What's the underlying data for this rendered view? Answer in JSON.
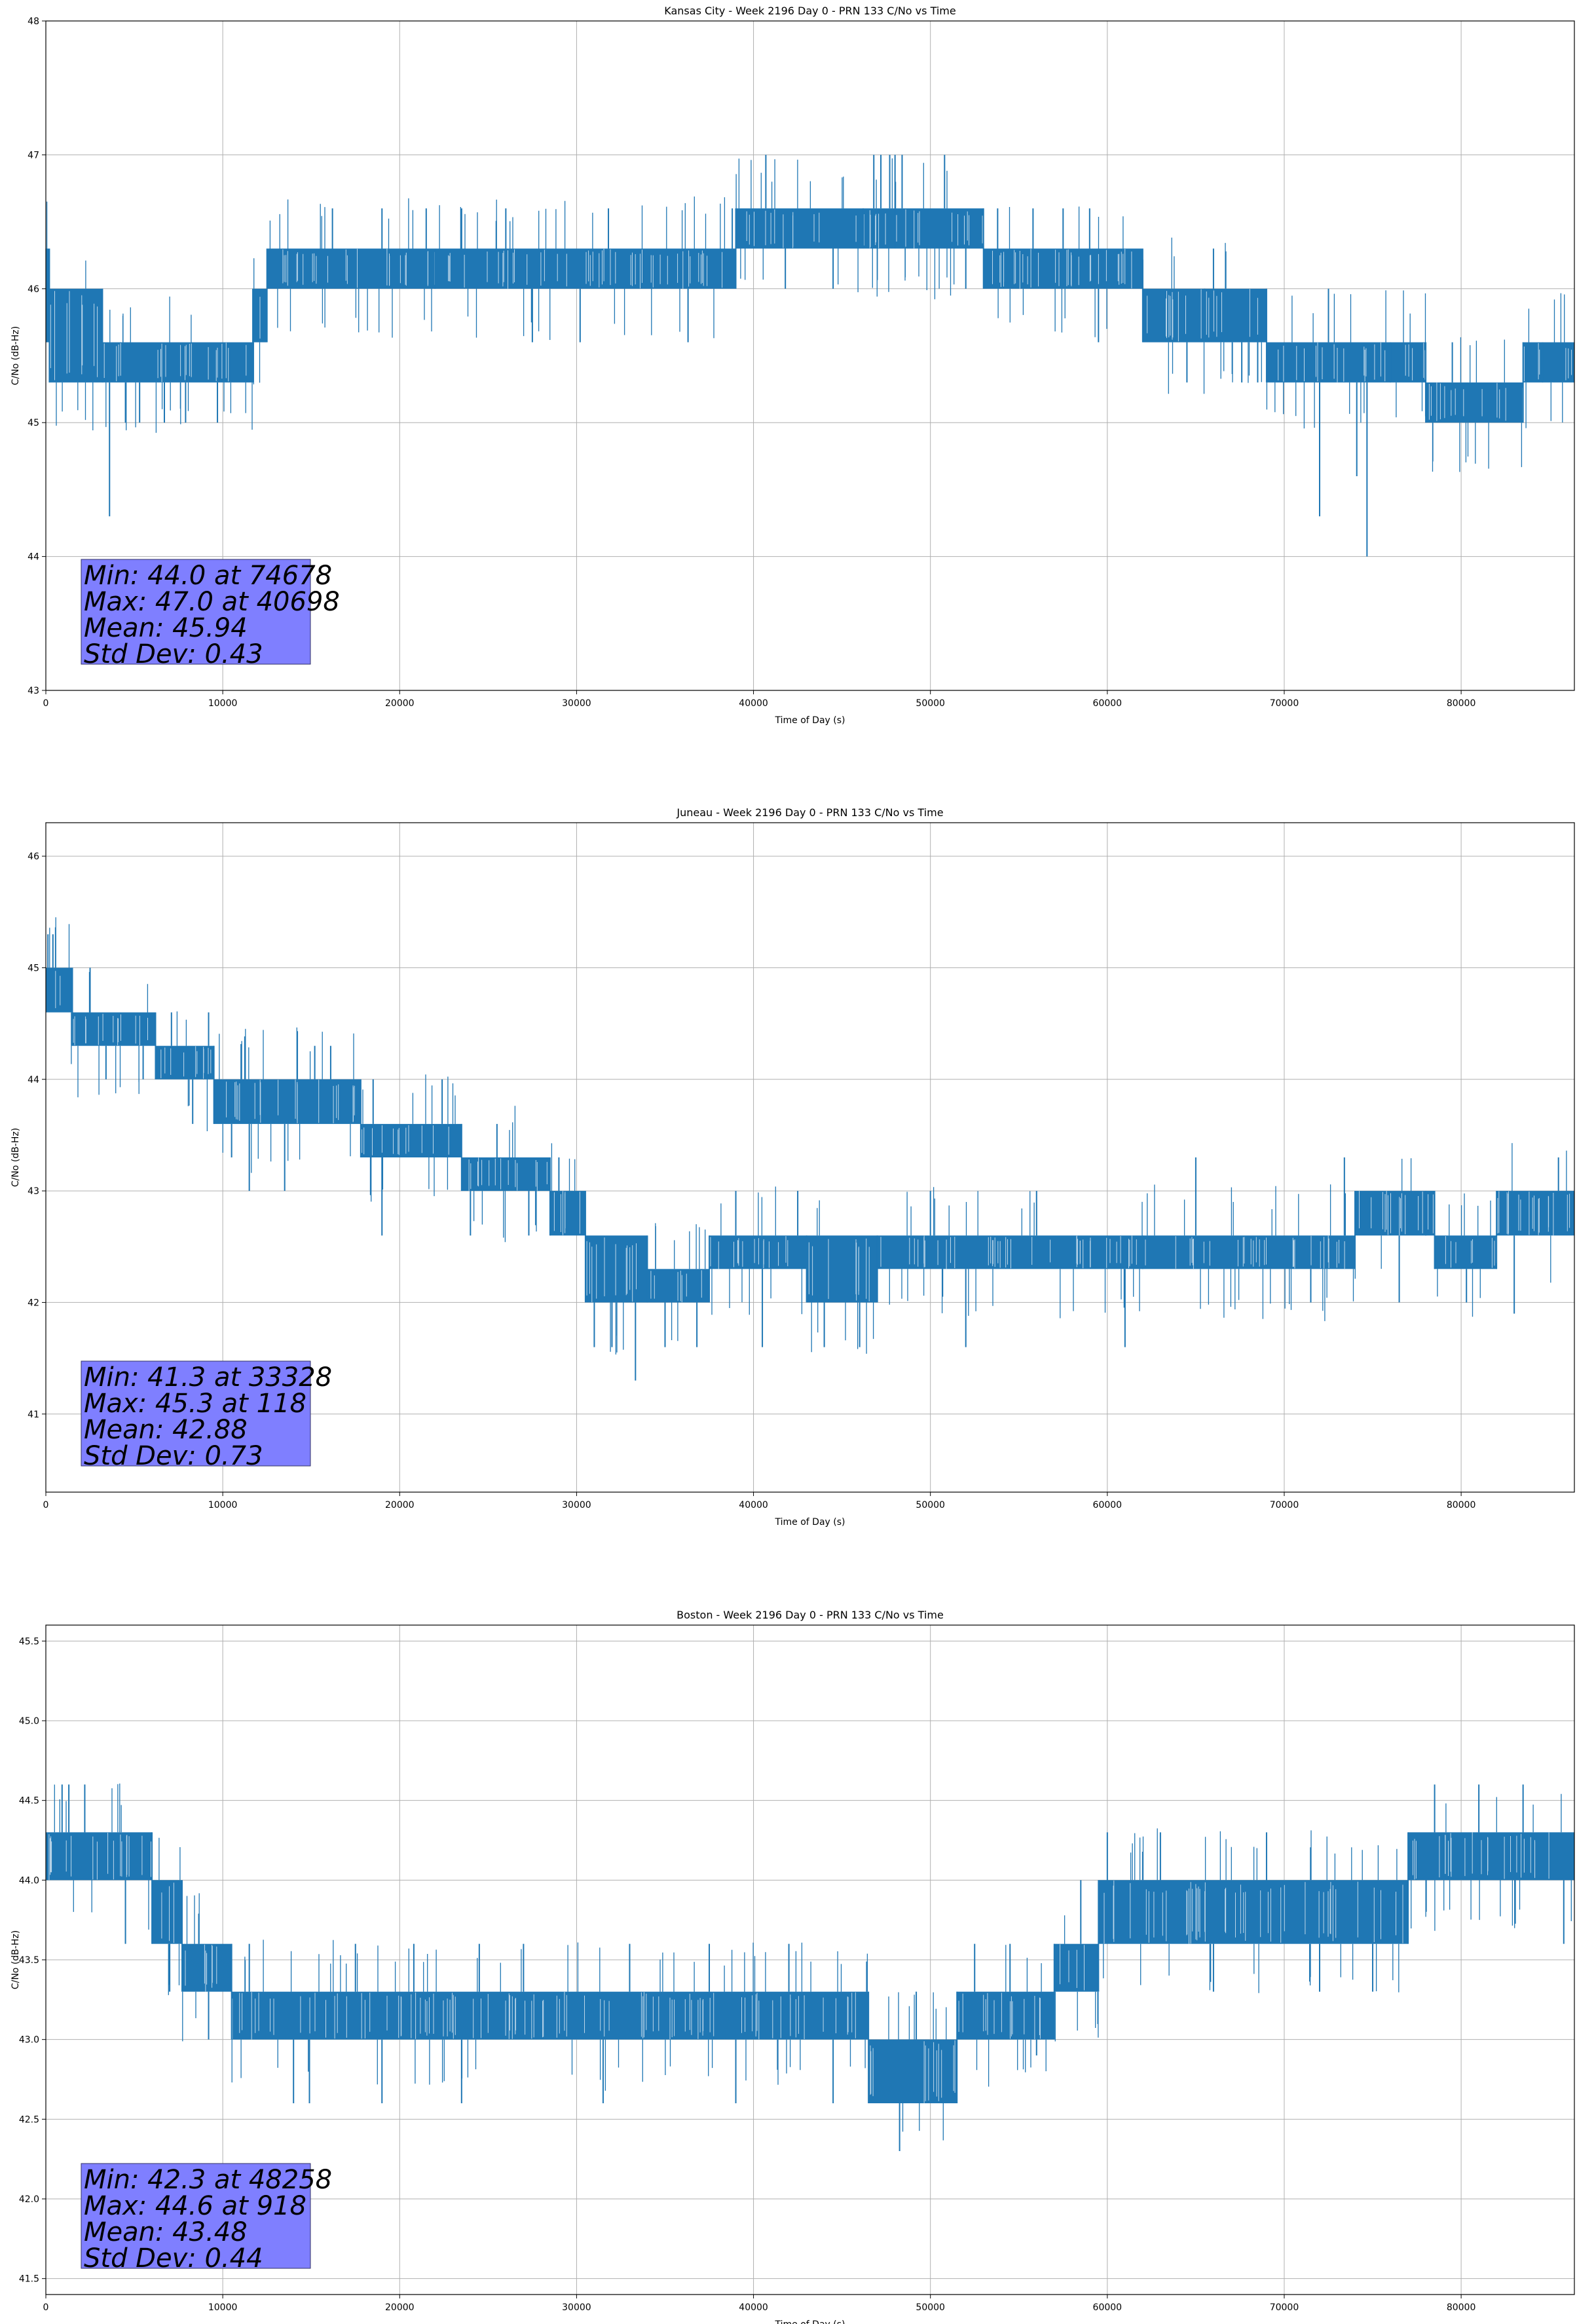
{
  "chart_data": [
    {
      "type": "line",
      "title": "Kansas City - Week 2196 Day 0 - PRN 133 C/No vs Time",
      "xlabel": "Time of Day (s)",
      "ylabel": "C/No (dB-Hz)",
      "xlim": [
        0,
        86400
      ],
      "ylim": [
        43,
        48
      ],
      "xticks": [
        0,
        10000,
        20000,
        30000,
        40000,
        50000,
        60000,
        70000,
        80000
      ],
      "xtick_labels": [
        "0",
        "10000",
        "20000",
        "30000",
        "40000",
        "50000",
        "60000",
        "70000",
        "80000"
      ],
      "yticks": [
        43,
        44,
        45,
        46,
        47,
        48
      ],
      "ytick_labels": [
        "43",
        "44",
        "45",
        "46",
        "47",
        "48"
      ],
      "grid": true,
      "series_color": "#1f77b4",
      "stats_box_color": "#7f7fff",
      "stats": [
        "Min: 44.0 at 74678",
        "Max: 47.0 at 40698",
        "Mean: 45.94",
        "Std Dev: 0.43"
      ],
      "segments": [
        {
          "x0": 0,
          "x1": 200,
          "lo": 45.6,
          "hi": 46.3
        },
        {
          "x0": 200,
          "x1": 3200,
          "lo": 45.3,
          "hi": 46.0
        },
        {
          "x0": 3200,
          "x1": 11700,
          "lo": 45.3,
          "hi": 45.6
        },
        {
          "x0": 11700,
          "x1": 12500,
          "lo": 45.6,
          "hi": 46.0
        },
        {
          "x0": 12500,
          "x1": 22000,
          "lo": 46.0,
          "hi": 46.3
        },
        {
          "x0": 22000,
          "x1": 39000,
          "lo": 46.0,
          "hi": 46.3
        },
        {
          "x0": 39000,
          "x1": 48000,
          "lo": 46.3,
          "hi": 46.6
        },
        {
          "x0": 48000,
          "x1": 53000,
          "lo": 46.3,
          "hi": 46.6
        },
        {
          "x0": 53000,
          "x1": 62000,
          "lo": 46.0,
          "hi": 46.3
        },
        {
          "x0": 62000,
          "x1": 65500,
          "lo": 45.6,
          "hi": 46.0
        },
        {
          "x0": 65500,
          "x1": 69000,
          "lo": 45.6,
          "hi": 46.0
        },
        {
          "x0": 69000,
          "x1": 78000,
          "lo": 45.3,
          "hi": 45.6
        },
        {
          "x0": 78000,
          "x1": 83500,
          "lo": 45.0,
          "hi": 45.3
        },
        {
          "x0": 83500,
          "x1": 86400,
          "lo": 45.3,
          "hi": 45.6
        }
      ],
      "spikes": [
        {
          "x": 3600,
          "y": 44.3
        },
        {
          "x": 4500,
          "y": 45.0
        },
        {
          "x": 5300,
          "y": 45.0
        },
        {
          "x": 6700,
          "y": 45.0
        },
        {
          "x": 7900,
          "y": 45.0
        },
        {
          "x": 9700,
          "y": 45.0
        },
        {
          "x": 16200,
          "y": 46.6
        },
        {
          "x": 19000,
          "y": 46.6
        },
        {
          "x": 21500,
          "y": 46.6
        },
        {
          "x": 23500,
          "y": 46.6
        },
        {
          "x": 26000,
          "y": 46.6
        },
        {
          "x": 27500,
          "y": 45.6
        },
        {
          "x": 30200,
          "y": 45.6
        },
        {
          "x": 31800,
          "y": 46.6
        },
        {
          "x": 36300,
          "y": 45.6
        },
        {
          "x": 38800,
          "y": 46.6
        },
        {
          "x": 40698,
          "y": 47.0
        },
        {
          "x": 41800,
          "y": 46.0
        },
        {
          "x": 44500,
          "y": 46.0
        },
        {
          "x": 46200,
          "y": 46.6
        },
        {
          "x": 46800,
          "y": 47.0
        },
        {
          "x": 47200,
          "y": 47.0
        },
        {
          "x": 47700,
          "y": 47.0
        },
        {
          "x": 48000,
          "y": 47.0
        },
        {
          "x": 48400,
          "y": 47.0
        },
        {
          "x": 50800,
          "y": 47.0
        },
        {
          "x": 52000,
          "y": 46.0
        },
        {
          "x": 53800,
          "y": 46.6
        },
        {
          "x": 55800,
          "y": 46.6
        },
        {
          "x": 57500,
          "y": 46.6
        },
        {
          "x": 59000,
          "y": 46.6
        },
        {
          "x": 59500,
          "y": 45.6
        },
        {
          "x": 64500,
          "y": 45.3
        },
        {
          "x": 66000,
          "y": 46.3
        },
        {
          "x": 67600,
          "y": 45.3
        },
        {
          "x": 68500,
          "y": 45.3
        },
        {
          "x": 72000,
          "y": 44.3
        },
        {
          "x": 72500,
          "y": 46.0
        },
        {
          "x": 74100,
          "y": 44.6
        },
        {
          "x": 74678,
          "y": 44.0
        },
        {
          "x": 76000,
          "y": 45.6
        },
        {
          "x": 79500,
          "y": 45.6
        },
        {
          "x": 82000,
          "y": 45.0
        },
        {
          "x": 84600,
          "y": 45.6
        }
      ]
    },
    {
      "type": "line",
      "title": "Juneau - Week 2196 Day 0 - PRN 133 C/No vs Time",
      "xlabel": "Time of Day (s)",
      "ylabel": "C/No (dB-Hz)",
      "xlim": [
        0,
        86400
      ],
      "ylim": [
        40.3,
        46.3
      ],
      "xticks": [
        0,
        10000,
        20000,
        30000,
        40000,
        50000,
        60000,
        70000,
        80000
      ],
      "xtick_labels": [
        "0",
        "10000",
        "20000",
        "30000",
        "40000",
        "50000",
        "60000",
        "70000",
        "80000"
      ],
      "yticks": [
        41,
        42,
        43,
        44,
        45,
        46
      ],
      "ytick_labels": [
        "41",
        "42",
        "43",
        "44",
        "45",
        "46"
      ],
      "grid": true,
      "series_color": "#1f77b4",
      "stats_box_color": "#7f7fff",
      "stats": [
        "Min: 41.3 at 33328",
        "Max: 45.3 at 118",
        "Mean: 42.88",
        "Std Dev: 0.73"
      ],
      "segments": [
        {
          "x0": 0,
          "x1": 1500,
          "lo": 44.6,
          "hi": 45.0
        },
        {
          "x0": 1500,
          "x1": 6200,
          "lo": 44.3,
          "hi": 44.6
        },
        {
          "x0": 6200,
          "x1": 9500,
          "lo": 44.0,
          "hi": 44.3
        },
        {
          "x0": 9500,
          "x1": 17800,
          "lo": 43.6,
          "hi": 44.0
        },
        {
          "x0": 17800,
          "x1": 23500,
          "lo": 43.3,
          "hi": 43.6
        },
        {
          "x0": 23500,
          "x1": 28500,
          "lo": 43.0,
          "hi": 43.3
        },
        {
          "x0": 28500,
          "x1": 30500,
          "lo": 42.6,
          "hi": 43.0
        },
        {
          "x0": 30500,
          "x1": 34000,
          "lo": 42.0,
          "hi": 42.6
        },
        {
          "x0": 34000,
          "x1": 37500,
          "lo": 42.0,
          "hi": 42.3
        },
        {
          "x0": 37500,
          "x1": 43000,
          "lo": 42.3,
          "hi": 42.6
        },
        {
          "x0": 43000,
          "x1": 47000,
          "lo": 42.0,
          "hi": 42.6
        },
        {
          "x0": 47000,
          "x1": 62000,
          "lo": 42.3,
          "hi": 42.6
        },
        {
          "x0": 62000,
          "x1": 74000,
          "lo": 42.3,
          "hi": 42.6
        },
        {
          "x0": 74000,
          "x1": 78500,
          "lo": 42.6,
          "hi": 43.0
        },
        {
          "x0": 78500,
          "x1": 82000,
          "lo": 42.3,
          "hi": 42.6
        },
        {
          "x0": 82000,
          "x1": 86400,
          "lo": 42.6,
          "hi": 43.0
        }
      ],
      "spikes": [
        {
          "x": 118,
          "y": 45.3
        },
        {
          "x": 400,
          "y": 45.3
        },
        {
          "x": 2500,
          "y": 45.0
        },
        {
          "x": 3400,
          "y": 44.0
        },
        {
          "x": 5500,
          "y": 44.0
        },
        {
          "x": 7100,
          "y": 44.6
        },
        {
          "x": 8300,
          "y": 43.6
        },
        {
          "x": 9200,
          "y": 44.6
        },
        {
          "x": 10500,
          "y": 43.3
        },
        {
          "x": 11500,
          "y": 43.0
        },
        {
          "x": 13500,
          "y": 43.0
        },
        {
          "x": 15200,
          "y": 44.3
        },
        {
          "x": 16100,
          "y": 44.3
        },
        {
          "x": 18500,
          "y": 44.0
        },
        {
          "x": 19000,
          "y": 42.6
        },
        {
          "x": 22400,
          "y": 44.0
        },
        {
          "x": 24000,
          "y": 42.6
        },
        {
          "x": 25500,
          "y": 43.6
        },
        {
          "x": 27300,
          "y": 42.6
        },
        {
          "x": 29000,
          "y": 43.3
        },
        {
          "x": 31000,
          "y": 41.6
        },
        {
          "x": 32000,
          "y": 41.6
        },
        {
          "x": 33328,
          "y": 41.3
        },
        {
          "x": 35000,
          "y": 41.6
        },
        {
          "x": 36800,
          "y": 41.6
        },
        {
          "x": 39000,
          "y": 43.0
        },
        {
          "x": 40500,
          "y": 41.6
        },
        {
          "x": 42500,
          "y": 43.0
        },
        {
          "x": 44000,
          "y": 41.6
        },
        {
          "x": 46000,
          "y": 41.6
        },
        {
          "x": 50000,
          "y": 43.0
        },
        {
          "x": 52000,
          "y": 41.6
        },
        {
          "x": 56000,
          "y": 43.0
        },
        {
          "x": 61000,
          "y": 41.6
        },
        {
          "x": 65000,
          "y": 43.3
        },
        {
          "x": 71500,
          "y": 42.0
        },
        {
          "x": 73400,
          "y": 43.3
        },
        {
          "x": 76500,
          "y": 42.0
        },
        {
          "x": 78000,
          "y": 43.0
        },
        {
          "x": 80300,
          "y": 42.0
        },
        {
          "x": 83000,
          "y": 41.9
        },
        {
          "x": 85500,
          "y": 43.3
        }
      ]
    },
    {
      "type": "line",
      "title": "Boston - Week 2196 Day 0 - PRN 133 C/No vs Time",
      "xlabel": "Time of Day (s)",
      "ylabel": "C/No (dB-Hz)",
      "xlim": [
        0,
        86400
      ],
      "ylim": [
        41.4,
        45.6
      ],
      "xticks": [
        0,
        10000,
        20000,
        30000,
        40000,
        50000,
        60000,
        70000,
        80000
      ],
      "xtick_labels": [
        "0",
        "10000",
        "20000",
        "30000",
        "40000",
        "50000",
        "60000",
        "70000",
        "80000"
      ],
      "yticks": [
        41.5,
        42.0,
        42.5,
        43.0,
        43.5,
        44.0,
        44.5,
        45.0,
        45.5
      ],
      "ytick_labels": [
        "41.5",
        "42.0",
        "42.5",
        "43.0",
        "43.5",
        "44.0",
        "44.5",
        "45.0",
        "45.5"
      ],
      "grid": true,
      "series_color": "#1f77b4",
      "stats_box_color": "#7f7fff",
      "stats": [
        "Min: 42.3 at 48258",
        "Max: 44.6 at 918",
        "Mean: 43.48",
        "Std Dev: 0.44"
      ],
      "segments": [
        {
          "x0": 0,
          "x1": 6000,
          "lo": 44.0,
          "hi": 44.3
        },
        {
          "x0": 6000,
          "x1": 7700,
          "lo": 43.6,
          "hi": 44.0
        },
        {
          "x0": 7700,
          "x1": 10500,
          "lo": 43.3,
          "hi": 43.6
        },
        {
          "x0": 10500,
          "x1": 46500,
          "lo": 43.0,
          "hi": 43.3
        },
        {
          "x0": 46500,
          "x1": 51500,
          "lo": 42.6,
          "hi": 43.0
        },
        {
          "x0": 51500,
          "x1": 57000,
          "lo": 43.0,
          "hi": 43.3
        },
        {
          "x0": 57000,
          "x1": 59500,
          "lo": 43.3,
          "hi": 43.6
        },
        {
          "x0": 59500,
          "x1": 77000,
          "lo": 43.6,
          "hi": 44.0
        },
        {
          "x0": 77000,
          "x1": 86400,
          "lo": 44.0,
          "hi": 44.3
        }
      ],
      "spikes": [
        {
          "x": 918,
          "y": 44.6
        },
        {
          "x": 1300,
          "y": 44.6
        },
        {
          "x": 2200,
          "y": 44.6
        },
        {
          "x": 4500,
          "y": 43.6
        },
        {
          "x": 7000,
          "y": 43.3
        },
        {
          "x": 9200,
          "y": 43.0
        },
        {
          "x": 11500,
          "y": 43.6
        },
        {
          "x": 14000,
          "y": 42.6
        },
        {
          "x": 14900,
          "y": 42.6
        },
        {
          "x": 17500,
          "y": 43.6
        },
        {
          "x": 19000,
          "y": 42.6
        },
        {
          "x": 20800,
          "y": 43.6
        },
        {
          "x": 23500,
          "y": 42.6
        },
        {
          "x": 24500,
          "y": 43.6
        },
        {
          "x": 27000,
          "y": 43.6
        },
        {
          "x": 31500,
          "y": 42.6
        },
        {
          "x": 33000,
          "y": 43.6
        },
        {
          "x": 37500,
          "y": 43.6
        },
        {
          "x": 39000,
          "y": 42.6
        },
        {
          "x": 42000,
          "y": 43.6
        },
        {
          "x": 44500,
          "y": 42.6
        },
        {
          "x": 48258,
          "y": 42.3
        },
        {
          "x": 49200,
          "y": 43.3
        },
        {
          "x": 52500,
          "y": 43.6
        },
        {
          "x": 54500,
          "y": 43.6
        },
        {
          "x": 56000,
          "y": 42.9
        },
        {
          "x": 58500,
          "y": 44.0
        },
        {
          "x": 60000,
          "y": 44.3
        },
        {
          "x": 63000,
          "y": 44.3
        },
        {
          "x": 66000,
          "y": 43.3
        },
        {
          "x": 69000,
          "y": 44.3
        },
        {
          "x": 72000,
          "y": 43.3
        },
        {
          "x": 75000,
          "y": 43.3
        },
        {
          "x": 78500,
          "y": 44.6
        },
        {
          "x": 81000,
          "y": 44.6
        },
        {
          "x": 83500,
          "y": 44.6
        },
        {
          "x": 85800,
          "y": 43.6
        }
      ]
    }
  ]
}
